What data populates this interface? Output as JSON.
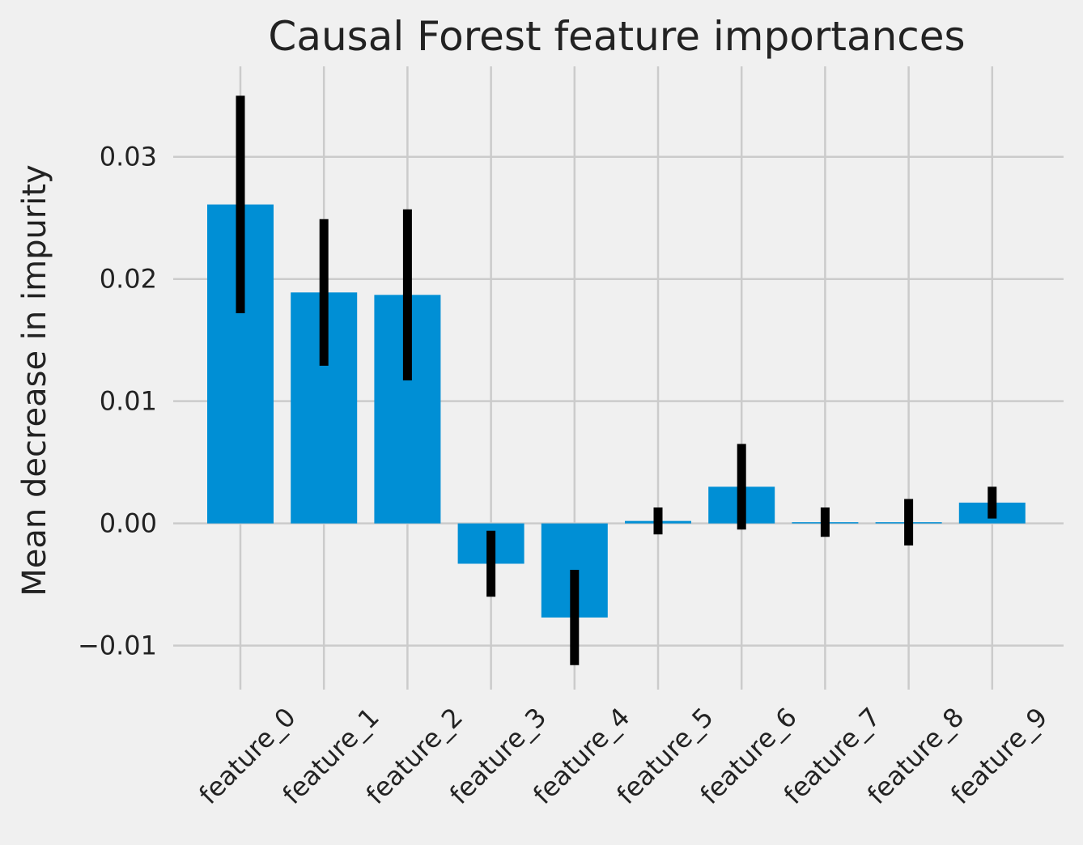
{
  "chart_data": {
    "type": "bar",
    "title": "Causal Forest feature importances",
    "xlabel": "",
    "ylabel": "Mean decrease in impurity",
    "categories": [
      "feature_0",
      "feature_1",
      "feature_2",
      "feature_3",
      "feature_4",
      "feature_5",
      "feature_6",
      "feature_7",
      "feature_8",
      "feature_9"
    ],
    "values": [
      0.0261,
      0.0189,
      0.0187,
      -0.0033,
      -0.0077,
      0.0002,
      0.003,
      0.0001,
      0.0001,
      0.0017
    ],
    "error": [
      0.0089,
      0.006,
      0.007,
      0.0027,
      0.0039,
      0.0011,
      0.0035,
      0.0012,
      0.0019,
      0.0013
    ],
    "yticks": [
      -0.01,
      0.0,
      0.01,
      0.02,
      0.03
    ],
    "ytick_labels": [
      "−0.01",
      "0.00",
      "0.01",
      "0.02",
      "0.03"
    ],
    "ylim": [
      -0.0136,
      0.0374
    ],
    "grid": true,
    "bar_color": "#008fd5",
    "error_color": "#000000",
    "background": "#f0f0f0",
    "grid_color": "#cbcbcb"
  }
}
